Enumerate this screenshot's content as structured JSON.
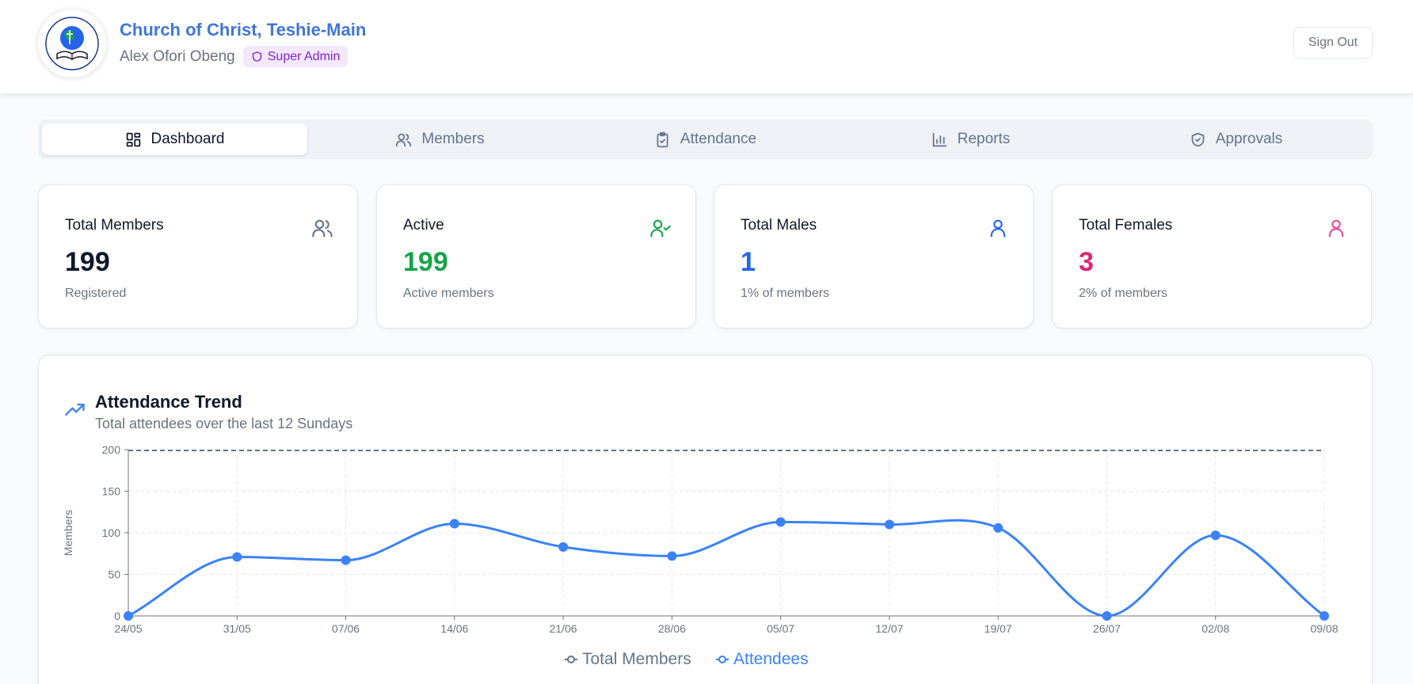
{
  "header": {
    "church_name": "Church of Christ, Teshie-Main",
    "user_name": "Alex Ofori Obeng",
    "role": "Super Admin",
    "sign_out": "Sign Out"
  },
  "tabs": [
    {
      "label": "Dashboard",
      "icon": "dashboard-icon",
      "active": true
    },
    {
      "label": "Members",
      "icon": "users-icon",
      "active": false
    },
    {
      "label": "Attendance",
      "icon": "clipboard-check-icon",
      "active": false
    },
    {
      "label": "Reports",
      "icon": "bar-chart-icon",
      "active": false
    },
    {
      "label": "Approvals",
      "icon": "shield-check-icon",
      "active": false
    }
  ],
  "stats": [
    {
      "title": "Total Members",
      "value": "199",
      "subtitle": "Registered",
      "icon": "users-icon",
      "color": "#0f172a",
      "icon_color": "#64748b"
    },
    {
      "title": "Active",
      "value": "199",
      "subtitle": "Active members",
      "icon": "user-check-icon",
      "color": "#16a34a",
      "icon_color": "#16a34a"
    },
    {
      "title": "Total Males",
      "value": "1",
      "subtitle": "1% of members",
      "icon": "user-icon",
      "color": "#2563eb",
      "icon_color": "#2563eb"
    },
    {
      "title": "Total Females",
      "value": "3",
      "subtitle": "2% of members",
      "icon": "user-icon",
      "color": "#db2777",
      "icon_color": "#ec4899"
    }
  ],
  "chart": {
    "title": "Attendance Trend",
    "subtitle": "Total attendees over the last 12 Sundays"
  },
  "chart_data": {
    "type": "line",
    "ylabel": "Members",
    "xlabel": "",
    "ylim": [
      0,
      200
    ],
    "yticks": [
      "0",
      "50",
      "100",
      "150",
      "200"
    ],
    "categories": [
      "24/05",
      "31/05",
      "07/06",
      "14/06",
      "21/06",
      "28/06",
      "05/07",
      "12/07",
      "19/07",
      "26/07",
      "02/08",
      "09/08"
    ],
    "series": [
      {
        "name": "Total Members",
        "color": "#64748b",
        "values": [
          199,
          199,
          199,
          199,
          199,
          199,
          199,
          199,
          199,
          199,
          199,
          199
        ]
      },
      {
        "name": "Attendees",
        "color": "#3b82f6",
        "values": [
          0,
          71,
          67,
          111,
          83,
          72,
          113,
          110,
          106,
          0,
          97,
          0
        ]
      }
    ],
    "grid": true,
    "legend": "bottom-center"
  }
}
